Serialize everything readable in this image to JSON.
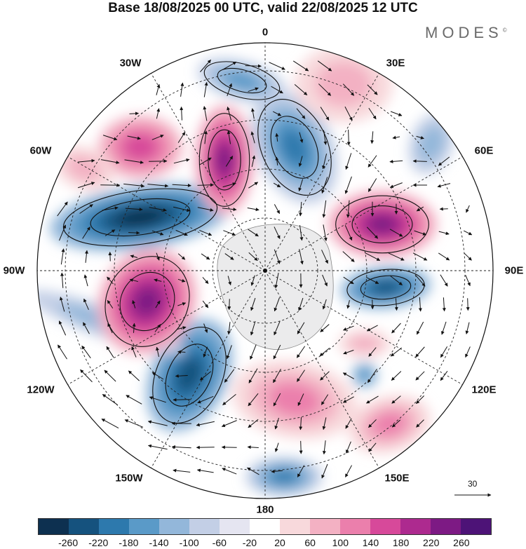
{
  "header": {
    "title": "Base 18/08/2025 00 UTC, valid 22/08/2025 12 UTC",
    "brand": "MODES"
  },
  "map": {
    "projection": "south-polar-stereographic",
    "longitude_labels": {
      "lon_0": "0",
      "lon_30e": "30E",
      "lon_60e": "60E",
      "lon_90e": "90E",
      "lon_120e": "120E",
      "lon_150e": "150E",
      "lon_180": "180",
      "lon_150w": "150W",
      "lon_120w": "120W",
      "lon_90w": "90W",
      "lon_60w": "60W",
      "lon_30w": "30W"
    },
    "reference_vector": "30",
    "fields": [
      "anomaly-shading",
      "wind-vectors",
      "contours",
      "coastlines",
      "graticule"
    ]
  },
  "colorbar": {
    "ticks": [
      "-260",
      "-220",
      "-180",
      "-140",
      "-100",
      "-60",
      "-20",
      "20",
      "60",
      "100",
      "140",
      "180",
      "220",
      "260"
    ],
    "colors": [
      "#0d3050",
      "#15527e",
      "#2d79ad",
      "#5a9ac8",
      "#93b7da",
      "#c3cfe6",
      "#e5e5f1",
      "#ffffff",
      "#f8d9dc",
      "#f3b1c3",
      "#eb7fac",
      "#d7499a",
      "#ad2a8f",
      "#7d1a84",
      "#4d1377"
    ]
  }
}
